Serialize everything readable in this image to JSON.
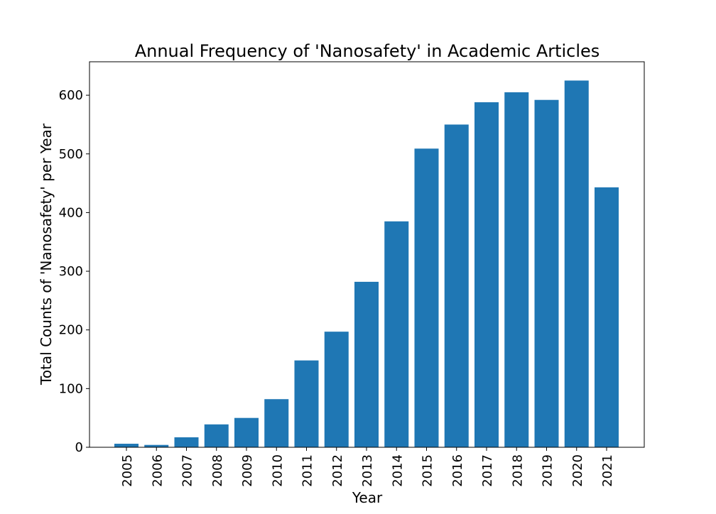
{
  "chart_data": {
    "type": "bar",
    "title": "Annual Frequency of 'Nanosafety' in Academic Articles",
    "xlabel": "Year",
    "ylabel": "Total Counts of 'Nanosafety' per Year",
    "categories": [
      "2005",
      "2006",
      "2007",
      "2008",
      "2009",
      "2010",
      "2011",
      "2012",
      "2013",
      "2014",
      "2015",
      "2016",
      "2017",
      "2018",
      "2019",
      "2020",
      "2021"
    ],
    "values": [
      6,
      4,
      17,
      39,
      50,
      82,
      148,
      197,
      282,
      385,
      509,
      550,
      588,
      605,
      592,
      625,
      443
    ],
    "ylim": [
      0,
      657
    ],
    "yticks": [
      0,
      100,
      200,
      300,
      400,
      500,
      600
    ],
    "bar_color": "#1f77b4",
    "grid": false,
    "legend": "none"
  }
}
